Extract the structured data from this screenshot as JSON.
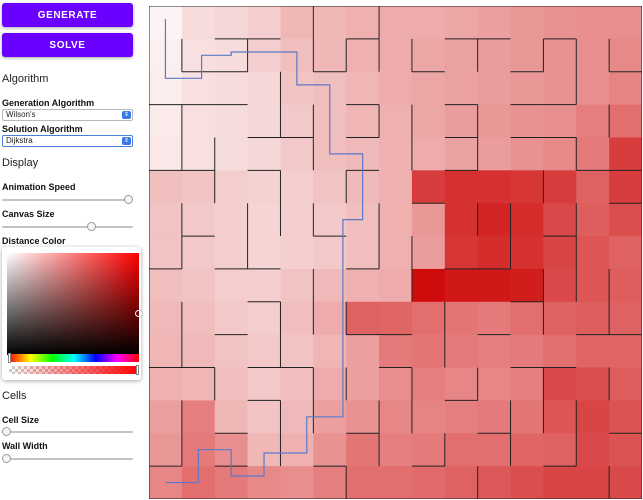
{
  "buttons": {
    "generate": "GENERATE",
    "solve": "SOLVE"
  },
  "algorithm": {
    "section": "Algorithm",
    "generation_label": "Generation Algorithm",
    "generation_value": "Wilson's",
    "solution_label": "Solution Algorithm",
    "solution_value": "Dijkstra"
  },
  "display": {
    "section": "Display",
    "animation_speed_label": "Animation Speed",
    "animation_speed": 1.0,
    "canvas_size_label": "Canvas Size",
    "canvas_size": 0.7,
    "distance_color_label": "Distance Color",
    "distance_color": "#ff0000"
  },
  "cells": {
    "section": "Cells",
    "cell_size_label": "Cell Size",
    "cell_size": 0.0,
    "wall_width_label": "Wall Width",
    "wall_width": 0.0
  },
  "maze": {
    "rows": 15,
    "cols": 15,
    "max_color": "#cc0000",
    "path_color": "#5b79c9"
  }
}
